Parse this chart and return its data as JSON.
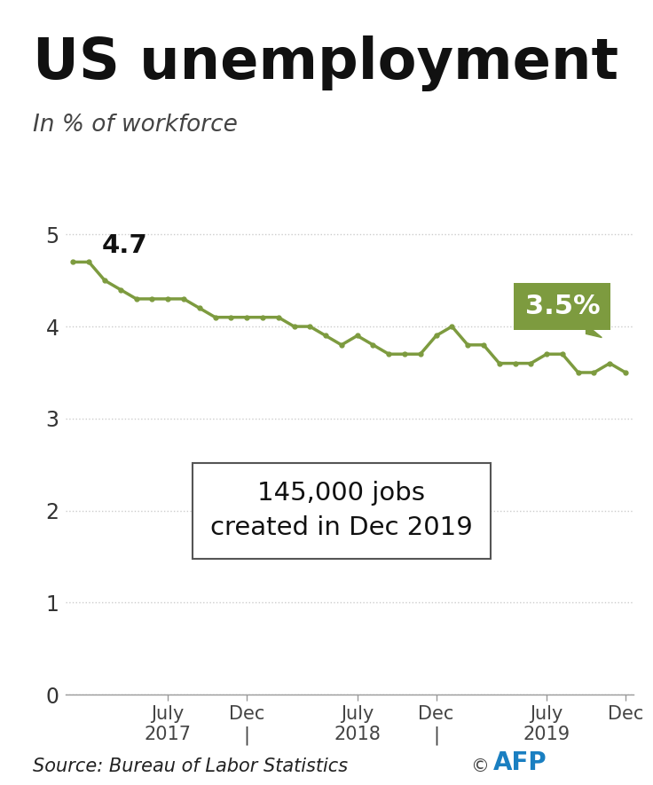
{
  "title": "US unemployment",
  "subtitle": "In % of workforce",
  "source": "Source: Bureau of Labor Statistics",
  "copyright_sym": "©",
  "afp": "AFP",
  "line_color": "#7d9b3f",
  "background_color": "#ffffff",
  "top_bar_color": "#111111",
  "annotation_start_label": "4.7",
  "annotation_end_label": "3.5%",
  "annotation_box_text": "145,000 jobs\ncreated in Dec 2019",
  "ylim": [
    0,
    5.5
  ],
  "yticks": [
    0,
    1,
    2,
    3,
    4,
    5
  ],
  "unemployment_data": [
    4.7,
    4.7,
    4.5,
    4.4,
    4.3,
    4.3,
    4.3,
    4.3,
    4.2,
    4.1,
    4.1,
    4.1,
    4.1,
    4.1,
    4.0,
    4.0,
    3.9,
    3.8,
    3.9,
    3.8,
    3.7,
    3.7,
    3.7,
    3.9,
    4.0,
    3.8,
    3.8,
    3.6,
    3.6,
    3.6,
    3.7,
    3.7,
    3.5,
    3.5,
    3.6,
    3.5
  ],
  "tick_label_fontsize": 17,
  "title_fontsize": 46,
  "subtitle_fontsize": 19,
  "source_fontsize": 15,
  "afp_fontsize": 20,
  "afp_color": "#1a7fc1",
  "grid_color": "#cccccc",
  "spine_color": "#999999",
  "xtick_label_fontsize": 15
}
